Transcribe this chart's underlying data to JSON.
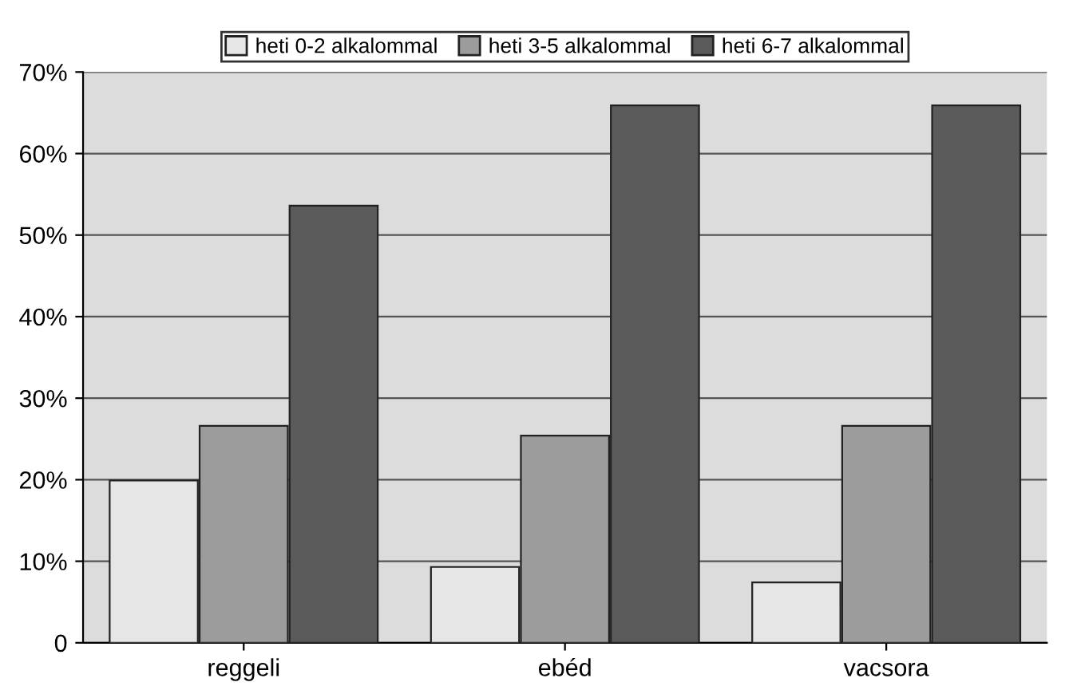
{
  "chart_data": {
    "type": "bar",
    "categories": [
      "reggeli",
      "ebéd",
      "vacsora"
    ],
    "series": [
      {
        "name": "heti 0-2 alkalommal",
        "color": "#e6e6e6",
        "values": [
          19.9,
          9.3,
          7.4
        ]
      },
      {
        "name": "heti 3-5 alkalommal",
        "color": "#9c9c9c",
        "values": [
          26.6,
          25.4,
          26.6
        ]
      },
      {
        "name": "heti 6-7 alkalommal",
        "color": "#5a5a5a",
        "values": [
          53.6,
          65.9,
          65.9
        ]
      }
    ],
    "ylim": [
      0,
      70
    ],
    "yticks": [
      0,
      {
        "value": 10,
        "label": "10%"
      },
      {
        "value": 20,
        "label": "20%"
      },
      {
        "value": 30,
        "label": "30%"
      },
      {
        "value": 40,
        "label": "40%"
      },
      {
        "value": 50,
        "label": "50%"
      },
      {
        "value": 60,
        "label": "60%"
      },
      {
        "value": 70,
        "label": "70%"
      }
    ],
    "grid": "y",
    "legend": "top"
  }
}
